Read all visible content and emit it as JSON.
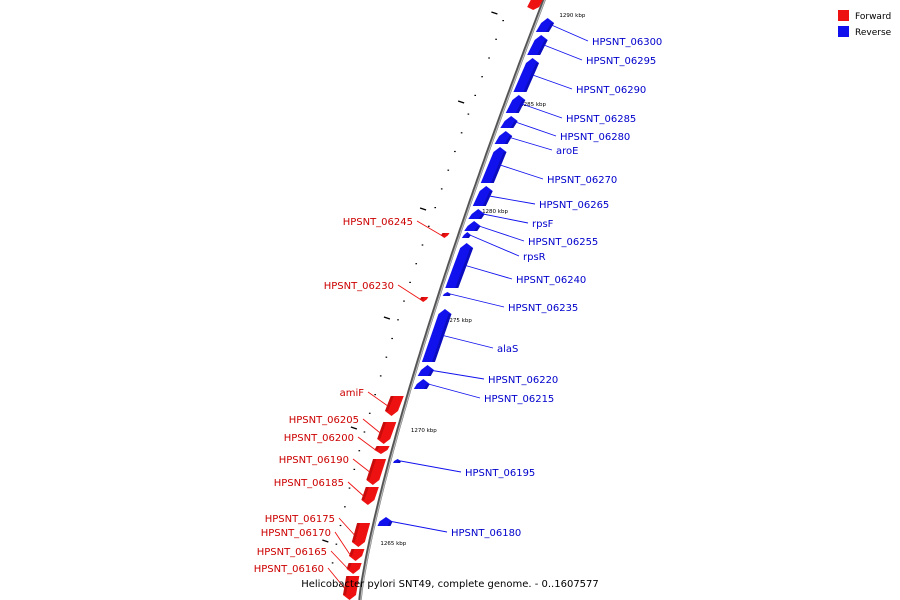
{
  "caption": "Helicobacter pylori SNT49, complete genome. - 0..1607577",
  "colors": {
    "forward": "#ee1111",
    "forward_side": "#aa0808",
    "reverse": "#1111ee",
    "reverse_side": "#0a0a99",
    "backbone": "#888888"
  },
  "legend": [
    {
      "label": "Forward",
      "strand": "forward"
    },
    {
      "label": "Reverse",
      "strand": "reverse"
    }
  ],
  "ticks": [
    {
      "label": "1290 kbp"
    },
    {
      "label": "1285 kbp"
    },
    {
      "label": "1280 kbp"
    },
    {
      "label": "1275 kbp"
    },
    {
      "label": "1270 kbp"
    },
    {
      "label": "1265 kbp"
    }
  ],
  "genes": [
    {
      "name": "HPSNT_06300",
      "strand": "reverse"
    },
    {
      "name": "HPSNT_06295",
      "strand": "reverse"
    },
    {
      "name": "HPSNT_06290",
      "strand": "reverse"
    },
    {
      "name": "HPSNT_06285",
      "strand": "reverse"
    },
    {
      "name": "HPSNT_06280",
      "strand": "reverse"
    },
    {
      "name": "aroE",
      "strand": "reverse"
    },
    {
      "name": "HPSNT_06270",
      "strand": "reverse"
    },
    {
      "name": "HPSNT_06265",
      "strand": "reverse"
    },
    {
      "name": "rpsF",
      "strand": "reverse"
    },
    {
      "name": "HPSNT_06255",
      "strand": "reverse"
    },
    {
      "name": "rpsR",
      "strand": "reverse"
    },
    {
      "name": "HPSNT_06240",
      "strand": "reverse"
    },
    {
      "name": "HPSNT_06235",
      "strand": "reverse"
    },
    {
      "name": "alaS",
      "strand": "reverse"
    },
    {
      "name": "HPSNT_06220",
      "strand": "reverse"
    },
    {
      "name": "HPSNT_06215",
      "strand": "reverse"
    },
    {
      "name": "HPSNT_06195",
      "strand": "reverse"
    },
    {
      "name": "HPSNT_06180",
      "strand": "reverse"
    },
    {
      "name": "HPSNT_06245",
      "strand": "forward"
    },
    {
      "name": "HPSNT_06230",
      "strand": "forward"
    },
    {
      "name": "amiF",
      "strand": "forward"
    },
    {
      "name": "HPSNT_06205",
      "strand": "forward"
    },
    {
      "name": "HPSNT_06200",
      "strand": "forward"
    },
    {
      "name": "HPSNT_06190",
      "strand": "forward"
    },
    {
      "name": "HPSNT_06185",
      "strand": "forward"
    },
    {
      "name": "HPSNT_06175",
      "strand": "forward"
    },
    {
      "name": "HPSNT_06170",
      "strand": "forward"
    },
    {
      "name": "HPSNT_06165",
      "strand": "forward"
    },
    {
      "name": "HPSNT_06160",
      "strand": "forward"
    }
  ]
}
